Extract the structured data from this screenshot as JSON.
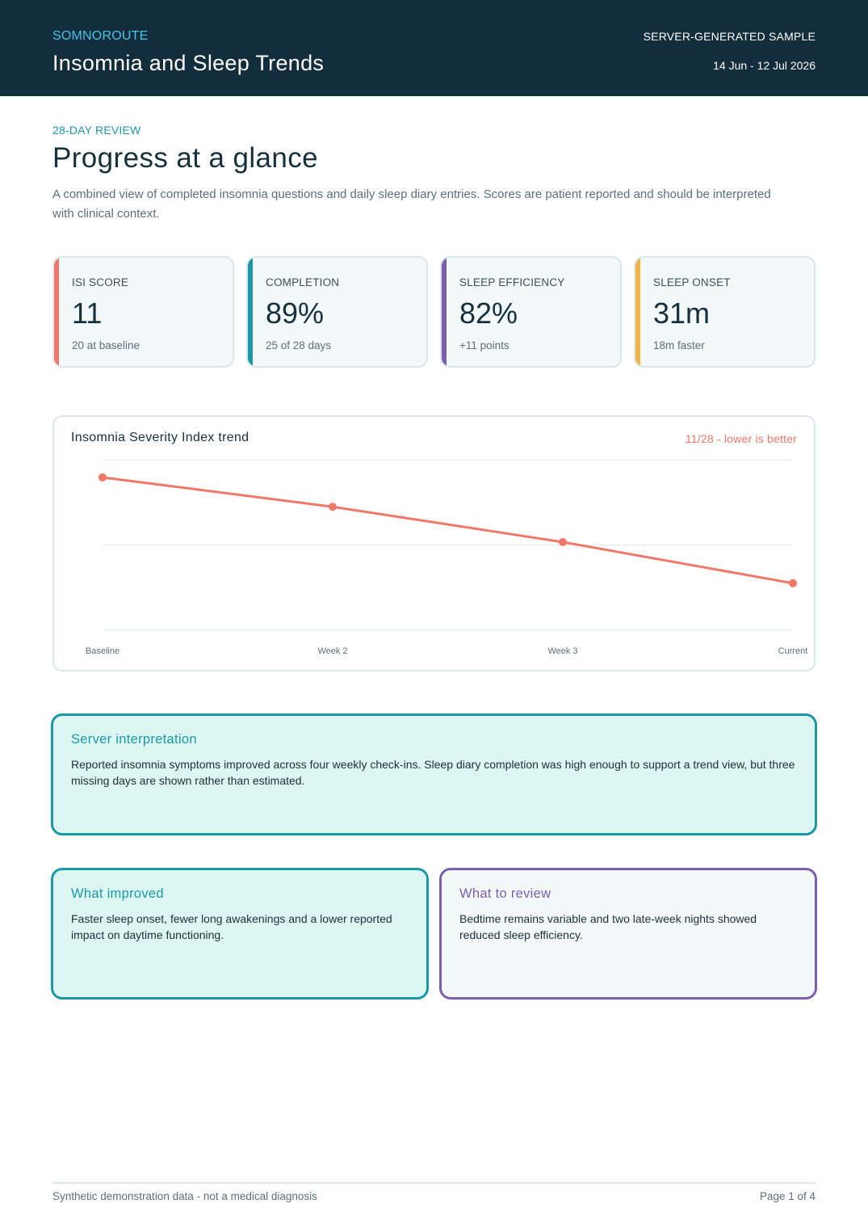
{
  "header": {
    "brand": "SOMNOROUTE",
    "title": "Insomnia and Sleep Trends",
    "sample_label": "SERVER-GENERATED SAMPLE",
    "date_range": "14 Jun - 12 Jul 2026"
  },
  "intro": {
    "eyebrow": "28-DAY REVIEW",
    "title": "Progress at a glance",
    "description": "A combined view of completed insomnia questions and daily sleep diary entries. Scores are patient reported and should be interpreted with clinical context."
  },
  "kpis": [
    {
      "label": "ISI SCORE",
      "value": "11",
      "sub": "20 at baseline",
      "color": "#f07868"
    },
    {
      "label": "COMPLETION",
      "value": "89%",
      "sub": "25 of 28 days",
      "color": "#1b98a6"
    },
    {
      "label": "SLEEP EFFICIENCY",
      "value": "82%",
      "sub": "+11 points",
      "color": "#7b5fae"
    },
    {
      "label": "SLEEP ONSET",
      "value": "31m",
      "sub": "18m faster",
      "color": "#f3b443"
    }
  ],
  "chart": {
    "title": "Insomnia Severity Index trend",
    "note": "11/28 - lower is better",
    "line_color": "#f07868"
  },
  "chart_data": {
    "type": "line",
    "title": "Insomnia Severity Index trend",
    "categories": [
      "Baseline",
      "Week 2",
      "Week 3",
      "Current"
    ],
    "series": [
      {
        "values": [
          20,
          17.5,
          14.5,
          11
        ]
      }
    ],
    "ylim": [
      7,
      21.5
    ],
    "grid": true,
    "legend": "none"
  },
  "panels": {
    "interpretation": {
      "title": "Server interpretation",
      "body": "Reported insomnia symptoms improved across four weekly check-ins. Sleep diary completion was high enough to support a trend view, but three missing days are shown rather than estimated."
    },
    "improved": {
      "title": "What improved",
      "body": "Faster sleep onset, fewer long awakenings and a lower reported impact on daytime functioning."
    },
    "review": {
      "title": "What to review",
      "body": "Bedtime remains variable and two late-week nights showed reduced sleep efficiency."
    }
  },
  "footer": {
    "disclaimer": "Synthetic demonstration data - not a medical diagnosis",
    "page": "Page 1 of 4"
  }
}
